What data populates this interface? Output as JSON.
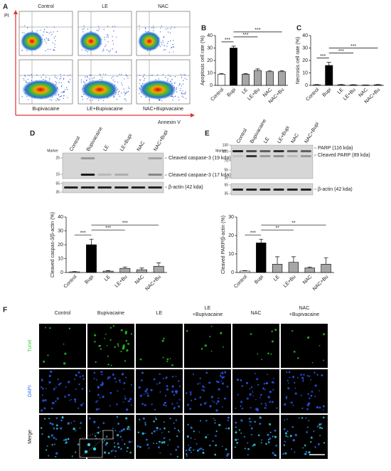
{
  "panel_a": {
    "label": "A",
    "y_axis_label": "PI",
    "x_axis_label": "Annexin V",
    "groups": [
      "Control",
      "LE",
      "NAC",
      "Bupivacaine",
      "LE+Bupivacaine",
      "NAC+Bupivacaine"
    ]
  },
  "chart_data": [
    {
      "type": "bar",
      "panel_label": "B",
      "y_label": "Apoptosis cell rate (%)",
      "categories": [
        "Control",
        "Bupi",
        "LE",
        "LE+Bu",
        "NAC",
        "NAC+Bu"
      ],
      "values": [
        9,
        30,
        9,
        12,
        11,
        11
      ],
      "errors": [
        0.5,
        1.5,
        0.5,
        1.2,
        0.6,
        0.7
      ],
      "colors": [
        "#ffffff",
        "#000000",
        "#a6a6a6",
        "#a6a6a6",
        "#a6a6a6",
        "#a6a6a6"
      ],
      "ylim": [
        0,
        40
      ],
      "yticks": [
        0,
        10,
        20,
        30,
        40
      ],
      "annotations": [
        {
          "text": "***",
          "between": [
            "Control",
            "Bupi"
          ]
        },
        {
          "text": "***",
          "between": [
            "Bupi",
            "LE+Bu"
          ]
        },
        {
          "text": "***",
          "between": [
            "Bupi",
            "NAC+Bu"
          ]
        }
      ]
    },
    {
      "type": "bar",
      "panel_label": "C",
      "y_label": "Necrosis cell rate (%)",
      "categories": [
        "Control",
        "Bupi",
        "LE",
        "LE+Bu",
        "NAC",
        "NAC+Bu"
      ],
      "values": [
        0.5,
        16,
        0.5,
        0.4,
        0.3,
        0.5
      ],
      "errors": [
        0.2,
        2.5,
        0.2,
        0.2,
        0.1,
        0.2
      ],
      "colors": [
        "#ffffff",
        "#000000",
        "#a6a6a6",
        "#a6a6a6",
        "#a6a6a6",
        "#a6a6a6"
      ],
      "ylim": [
        0,
        40
      ],
      "yticks": [
        0,
        10,
        20,
        30,
        40
      ],
      "annotations": [
        {
          "text": "***",
          "between": [
            "Control",
            "Bupi"
          ]
        },
        {
          "text": "***",
          "between": [
            "Bupi",
            "LE+Bu"
          ]
        },
        {
          "text": "***",
          "between": [
            "Bupi",
            "NAC+Bu"
          ]
        }
      ]
    },
    {
      "type": "bar",
      "y_label": "Cleaved caspas-3/β-actin (%)",
      "categories": [
        "Control",
        "Bupi",
        "LE",
        "LE+Bu",
        "NAC",
        "NAC+Bu"
      ],
      "values": [
        0.5,
        20,
        1,
        3,
        2,
        4.5
      ],
      "errors": [
        0.2,
        4,
        0.4,
        1,
        1.2,
        2.5
      ],
      "colors": [
        "#ffffff",
        "#000000",
        "#a6a6a6",
        "#a6a6a6",
        "#a6a6a6",
        "#a6a6a6"
      ],
      "ylim": [
        0,
        40
      ],
      "yticks": [
        0,
        10,
        20,
        30,
        40
      ],
      "annotations": [
        {
          "text": "***",
          "between": [
            "Control",
            "Bupi"
          ]
        },
        {
          "text": "***",
          "between": [
            "Bupi",
            "LE+Bu"
          ]
        },
        {
          "text": "***",
          "between": [
            "Bupi",
            "NAC+Bu"
          ]
        }
      ]
    },
    {
      "type": "bar",
      "y_label": "Cleaved PARP/β-actin (%)",
      "categories": [
        "Control",
        "Bupi",
        "LE",
        "LE+Bu",
        "NAC",
        "NAC+Bu"
      ],
      "values": [
        0.8,
        16,
        4.5,
        5.5,
        2.5,
        4.5
      ],
      "errors": [
        0.2,
        2,
        4,
        3,
        0.5,
        3.5
      ],
      "colors": [
        "#ffffff",
        "#000000",
        "#a6a6a6",
        "#a6a6a6",
        "#a6a6a6",
        "#a6a6a6"
      ],
      "ylim": [
        0,
        30
      ],
      "yticks": [
        0,
        10,
        20,
        30
      ],
      "annotations": [
        {
          "text": "***",
          "between": [
            "Control",
            "Bupi"
          ]
        },
        {
          "text": "**",
          "between": [
            "Bupi",
            "LE+Bu"
          ]
        },
        {
          "text": "**",
          "between": [
            "Bupi",
            "NAC+Bu"
          ]
        }
      ]
    }
  ],
  "blot_d": {
    "label": "D",
    "marker_title": "Marker",
    "lanes": [
      "Control",
      "Bupivacaine",
      "LE",
      "LE+Bupi",
      "NAC",
      "NAC+Bupi"
    ],
    "markers": [
      25,
      15,
      55,
      35
    ],
    "bands": [
      "Cleaved caspase-3 (19 kda)",
      "Cleaved caspase-3 (17 kda)",
      "β-actin (42 kda)"
    ]
  },
  "blot_e": {
    "label": "E",
    "marker_title": "Marker",
    "lanes": [
      "Control",
      "Bupivacaine",
      "LE",
      "LE+Bupi",
      "NAC",
      "NAC+Bupi"
    ],
    "markers": [
      130,
      100,
      70,
      55,
      35,
      55,
      35
    ],
    "bands": [
      "PARP (116 kda)",
      "Cleaved PARP (89 kda)",
      "β-actin (42 kda)"
    ]
  },
  "panel_f": {
    "label": "F",
    "columns": [
      [
        "Control"
      ],
      [
        "Bupivacaine"
      ],
      [
        "LE"
      ],
      [
        "LE",
        "+Bupivacaine"
      ],
      [
        "NAC"
      ],
      [
        "NAC",
        "+Bupivacaine"
      ]
    ],
    "rows": [
      "Tunel",
      "DAPI",
      "Merge"
    ]
  }
}
